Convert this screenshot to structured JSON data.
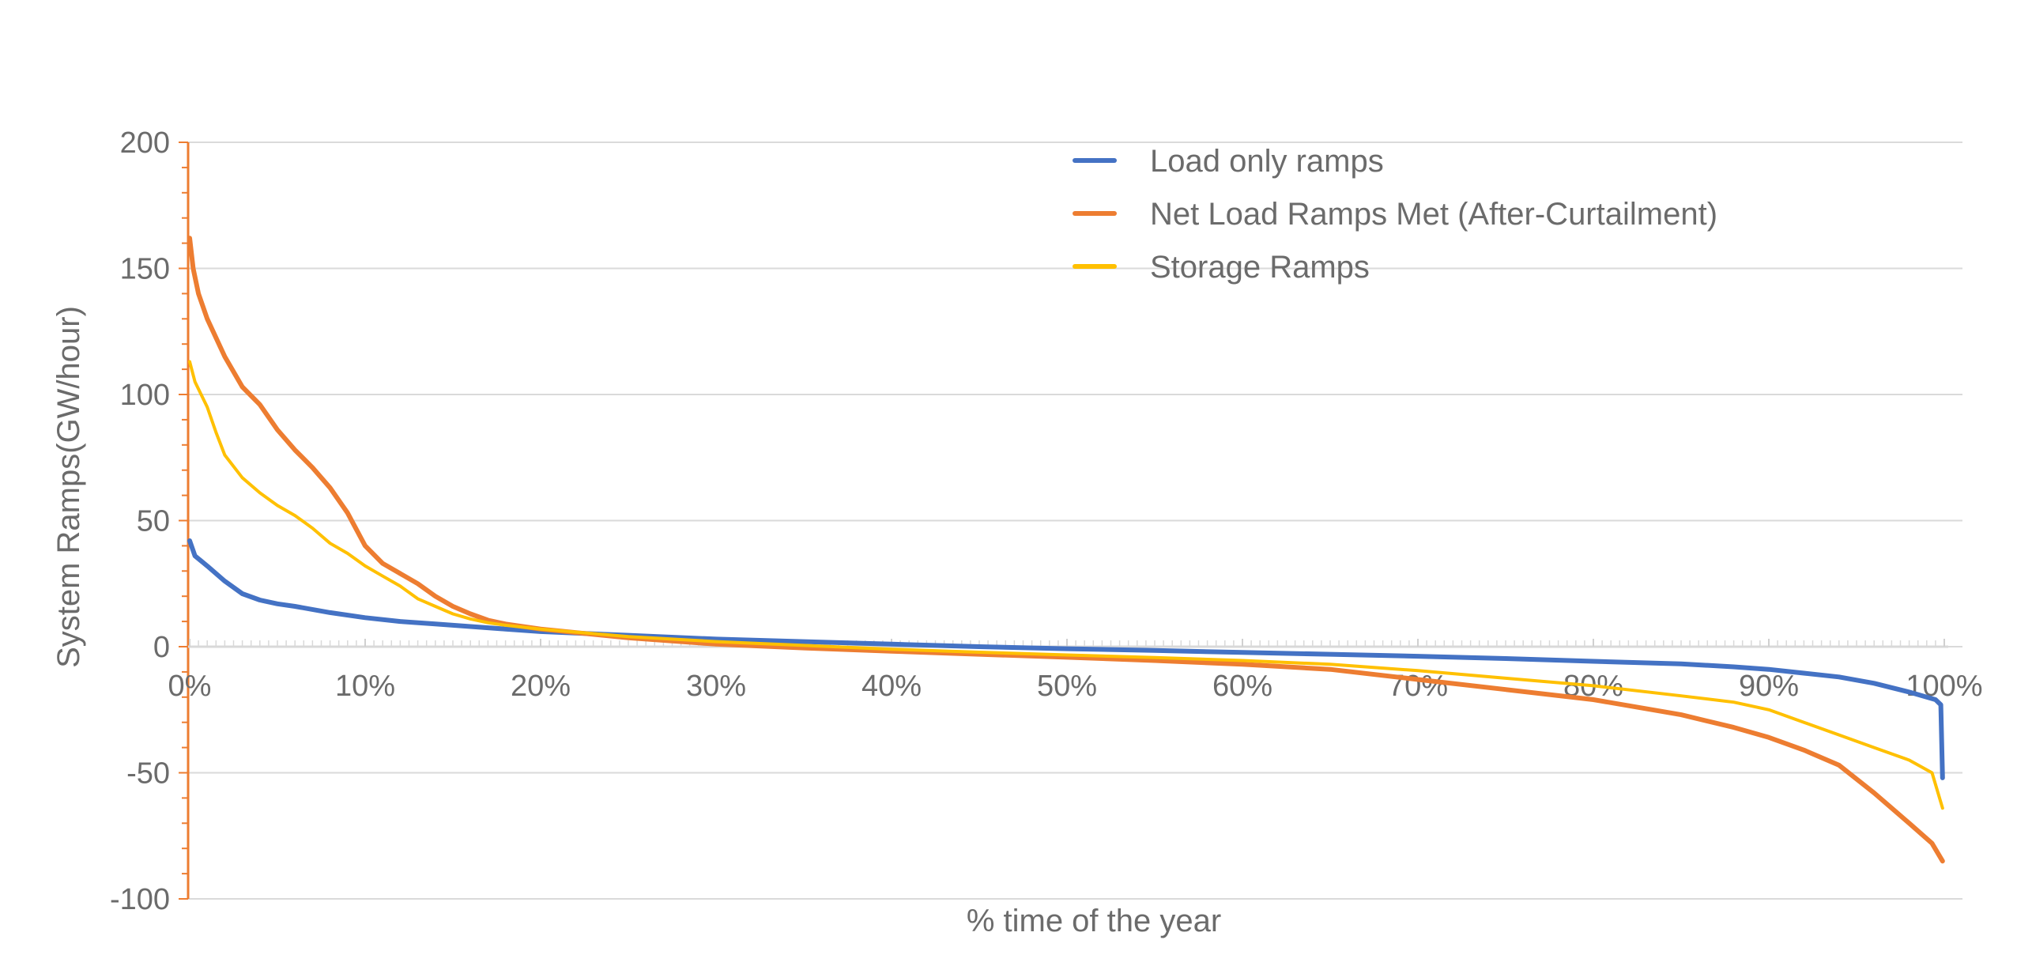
{
  "chart_data": {
    "type": "line",
    "title": "",
    "xlabel": "% time of the year",
    "ylabel": "System Ramps(GW/hour)",
    "xlim": [
      0,
      100
    ],
    "ylim": [
      -100,
      200
    ],
    "x_ticks": [
      "0%",
      "10%",
      "20%",
      "30%",
      "40%",
      "50%",
      "60%",
      "70%",
      "80%",
      "90%",
      "100%"
    ],
    "y_ticks": [
      "-100",
      "-50",
      "0",
      "50",
      "100",
      "150",
      "200"
    ],
    "x_tick_values": [
      0,
      10,
      20,
      30,
      40,
      50,
      60,
      70,
      80,
      90,
      100
    ],
    "y_tick_values": [
      -100,
      -50,
      0,
      50,
      100,
      150,
      200
    ],
    "grid": "horizontal",
    "legend_position": "top-right",
    "series": [
      {
        "name": "Load only ramps",
        "color": "#4472c4",
        "points": [
          [
            0,
            42
          ],
          [
            0.3,
            36
          ],
          [
            1,
            32
          ],
          [
            2,
            26
          ],
          [
            3,
            21
          ],
          [
            4,
            18.5
          ],
          [
            5,
            17
          ],
          [
            6,
            16
          ],
          [
            8,
            13.5
          ],
          [
            10,
            11.5
          ],
          [
            12,
            10
          ],
          [
            14,
            9
          ],
          [
            16,
            8
          ],
          [
            18,
            7
          ],
          [
            20,
            6
          ],
          [
            25,
            4.5
          ],
          [
            30,
            3
          ],
          [
            35,
            2
          ],
          [
            40,
            1
          ],
          [
            45,
            0
          ],
          [
            50,
            -0.8
          ],
          [
            55,
            -1.5
          ],
          [
            60,
            -2.3
          ],
          [
            65,
            -3
          ],
          [
            70,
            -3.8
          ],
          [
            75,
            -4.7
          ],
          [
            80,
            -5.8
          ],
          [
            85,
            -6.8
          ],
          [
            88,
            -8
          ],
          [
            90,
            -9
          ],
          [
            92,
            -10.5
          ],
          [
            94,
            -12
          ],
          [
            96,
            -14.5
          ],
          [
            98,
            -18
          ],
          [
            99.5,
            -21
          ],
          [
            99.8,
            -23
          ],
          [
            99.9,
            -52
          ]
        ]
      },
      {
        "name": "Net Load Ramps Met (After-Curtailment)",
        "color": "#ed7d31",
        "points": [
          [
            0,
            162
          ],
          [
            0.2,
            150
          ],
          [
            0.5,
            140
          ],
          [
            1,
            130
          ],
          [
            2,
            115
          ],
          [
            3,
            103
          ],
          [
            4,
            96
          ],
          [
            5,
            86
          ],
          [
            6,
            78
          ],
          [
            7,
            71
          ],
          [
            8,
            63
          ],
          [
            9,
            53
          ],
          [
            10,
            40
          ],
          [
            11,
            33
          ],
          [
            12,
            29
          ],
          [
            13,
            25
          ],
          [
            14,
            20
          ],
          [
            15,
            16
          ],
          [
            16,
            13
          ],
          [
            17,
            10.5
          ],
          [
            18,
            9
          ],
          [
            20,
            7
          ],
          [
            25,
            3.5
          ],
          [
            30,
            1
          ],
          [
            35,
            -0.5
          ],
          [
            40,
            -1.8
          ],
          [
            45,
            -3
          ],
          [
            50,
            -4.2
          ],
          [
            55,
            -5.5
          ],
          [
            60,
            -7
          ],
          [
            65,
            -9
          ],
          [
            70,
            -13
          ],
          [
            75,
            -17
          ],
          [
            80,
            -21
          ],
          [
            85,
            -27
          ],
          [
            88,
            -32
          ],
          [
            90,
            -36
          ],
          [
            92,
            -41
          ],
          [
            94,
            -47
          ],
          [
            96,
            -58
          ],
          [
            98,
            -70
          ],
          [
            99.3,
            -78
          ],
          [
            99.9,
            -85
          ]
        ]
      },
      {
        "name": "Storage Ramps",
        "color": "#ffc000",
        "points": [
          [
            0,
            113
          ],
          [
            0.3,
            105
          ],
          [
            1,
            95
          ],
          [
            1.5,
            85
          ],
          [
            2,
            76
          ],
          [
            3,
            67
          ],
          [
            4,
            61
          ],
          [
            5,
            56
          ],
          [
            6,
            52
          ],
          [
            7,
            47
          ],
          [
            8,
            41
          ],
          [
            9,
            37
          ],
          [
            10,
            32
          ],
          [
            11,
            28
          ],
          [
            12,
            24
          ],
          [
            13,
            19
          ],
          [
            14,
            16
          ],
          [
            15,
            13
          ],
          [
            16,
            11
          ],
          [
            17,
            9.5
          ],
          [
            18,
            8.5
          ],
          [
            20,
            7
          ],
          [
            25,
            4
          ],
          [
            30,
            2
          ],
          [
            35,
            0.5
          ],
          [
            40,
            -1
          ],
          [
            45,
            -2.2
          ],
          [
            50,
            -3.3
          ],
          [
            55,
            -4.3
          ],
          [
            60,
            -5.5
          ],
          [
            65,
            -7
          ],
          [
            70,
            -9.5
          ],
          [
            75,
            -12.5
          ],
          [
            80,
            -15.5
          ],
          [
            85,
            -19.5
          ],
          [
            88,
            -22
          ],
          [
            90,
            -25
          ],
          [
            92,
            -30
          ],
          [
            94,
            -35
          ],
          [
            96,
            -40
          ],
          [
            98,
            -45
          ],
          [
            99.3,
            -50
          ],
          [
            99.9,
            -64
          ]
        ]
      }
    ]
  }
}
